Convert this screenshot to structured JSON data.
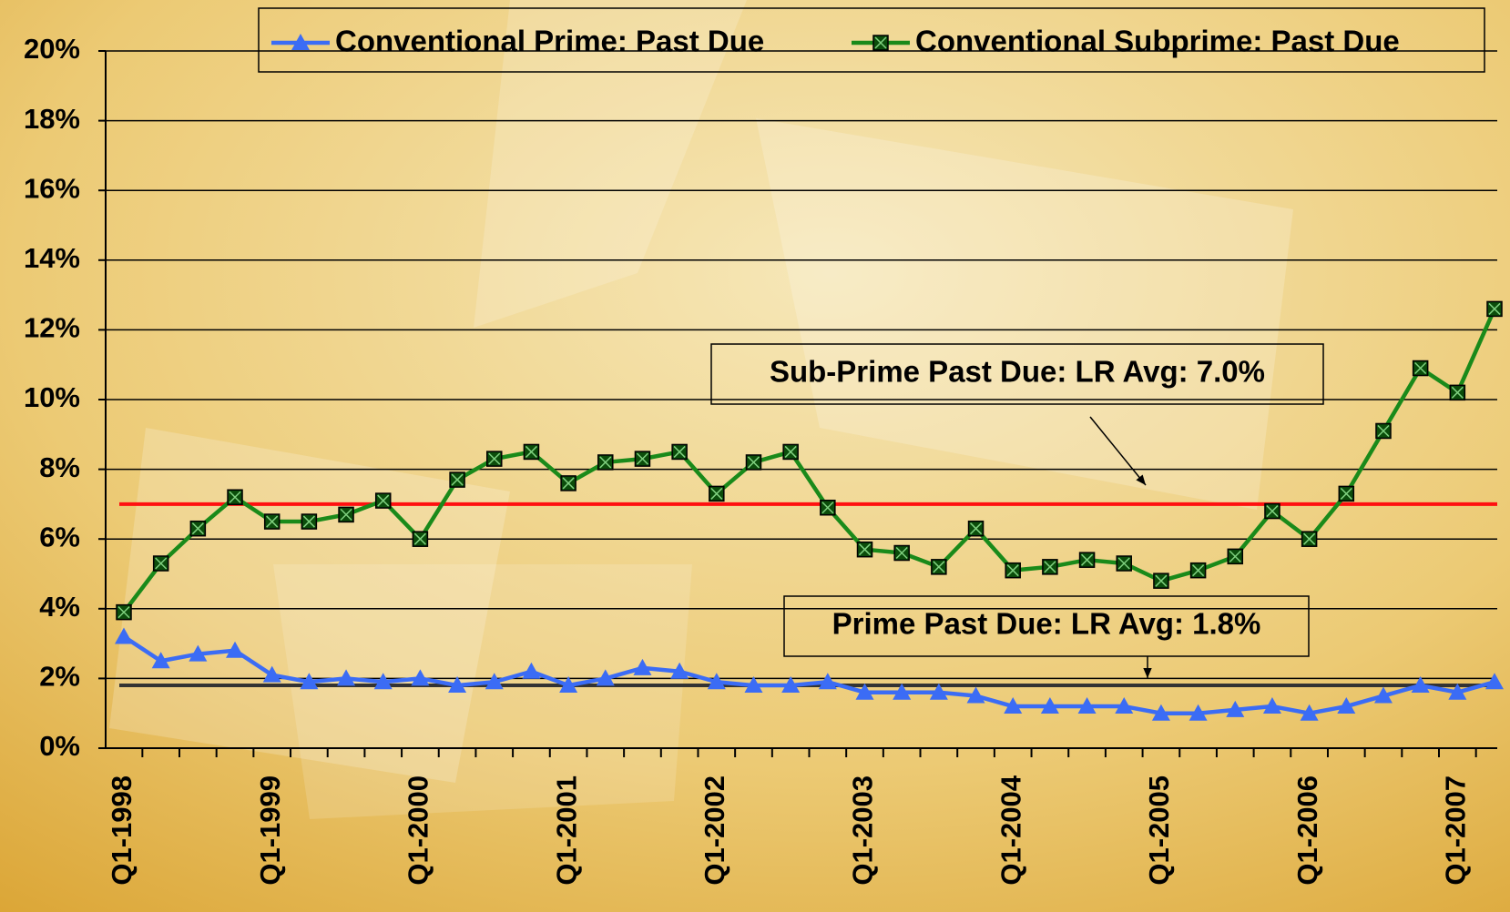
{
  "chart_data": {
    "type": "line",
    "categories": [
      "Q1-1998",
      null,
      null,
      null,
      "Q1-1999",
      null,
      null,
      null,
      "Q1-2000",
      null,
      null,
      null,
      "Q1-2001",
      null,
      null,
      null,
      "Q1-2002",
      null,
      null,
      null,
      "Q1-2003",
      null,
      null,
      null,
      "Q1-2004",
      null,
      null,
      null,
      "Q1-2005",
      null,
      null,
      null,
      "Q1-2006",
      null,
      null,
      null,
      "Q1-2007",
      null
    ],
    "series": [
      {
        "name": "Conventional Prime: Past Due",
        "color": "#3b6cf5",
        "marker": "triangle",
        "values": [
          3.2,
          2.5,
          2.7,
          2.8,
          2.1,
          1.9,
          2.0,
          1.9,
          2.0,
          1.8,
          1.9,
          2.2,
          1.8,
          2.0,
          2.3,
          2.2,
          1.9,
          1.8,
          1.8,
          1.9,
          1.6,
          1.6,
          1.6,
          1.5,
          1.2,
          1.2,
          1.2,
          1.2,
          1.0,
          1.0,
          1.1,
          1.2,
          1.0,
          1.2,
          1.5,
          1.8,
          1.6,
          1.9
        ]
      },
      {
        "name": "Conventional Subprime: Past Due",
        "color": "#1a8a1a",
        "marker": "square",
        "values": [
          3.9,
          5.3,
          6.3,
          7.2,
          6.5,
          6.5,
          6.7,
          7.1,
          6.0,
          7.7,
          8.3,
          8.5,
          7.6,
          8.2,
          8.3,
          8.5,
          7.3,
          8.2,
          8.5,
          6.9,
          5.7,
          5.6,
          5.2,
          6.3,
          5.1,
          5.2,
          5.4,
          5.3,
          4.8,
          5.1,
          5.5,
          6.8,
          6.0,
          7.3,
          9.1,
          10.9,
          10.2,
          12.6
        ]
      }
    ],
    "reference_lines": [
      {
        "value": 7.0,
        "color": "#ff1010",
        "label": "Sub-Prime Past Due: LR Avg: 7.0%"
      },
      {
        "value": 1.8,
        "color": "#333333",
        "label": "Prime Past Due: LR Avg: 1.8%"
      }
    ],
    "ylim": [
      0,
      20
    ],
    "yticks": [
      {
        "value": 0,
        "label": "0%"
      },
      {
        "value": 2,
        "label": "2%"
      },
      {
        "value": 4,
        "label": "4%"
      },
      {
        "value": 6,
        "label": "6%"
      },
      {
        "value": 8,
        "label": "8%"
      },
      {
        "value": 10,
        "label": "10%"
      },
      {
        "value": 12,
        "label": "12%"
      },
      {
        "value": 14,
        "label": "14%"
      },
      {
        "value": 16,
        "label": "16%"
      },
      {
        "value": 18,
        "label": "18%"
      },
      {
        "value": 20,
        "label": "20%"
      }
    ],
    "grid": true,
    "legend": "top"
  }
}
